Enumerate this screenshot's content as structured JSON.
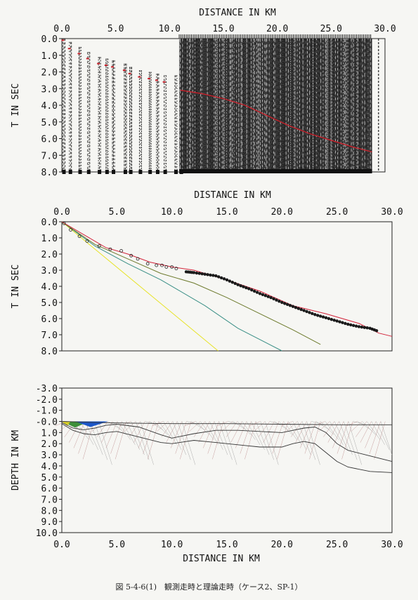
{
  "caption": "図 5-4-6(1)　観測走時と理論走時（ケース2、SP-1）",
  "chart_data": [
    {
      "id": "record-section",
      "type": "seismic-record-section",
      "xlabel": "DISTANCE IN KM",
      "ylabel": "T IN SEC",
      "xlim": [
        0,
        30
      ],
      "ylim": [
        0,
        8
      ],
      "xticks": [
        "0.0",
        "5.0",
        "10.0",
        "15.0",
        "20.0",
        "25.0",
        "30.0"
      ],
      "yticks": [
        "0.0",
        "1.0",
        "2.0",
        "3.0",
        "4.0",
        "5.0",
        "6.0",
        "7.0",
        "8.0"
      ],
      "x_axis_position": "top",
      "trace_groups_km": [
        0.1,
        0.7,
        1.6,
        2.4,
        3.4,
        4.1,
        4.7,
        5.8,
        6.3,
        7.2,
        8.1,
        8.8,
        9.5,
        10.5,
        11.0
      ],
      "dense_section_km": [
        10.9,
        28.8
      ],
      "first_break_picks": [
        [
          0.1,
          0.1
        ],
        [
          0.7,
          0.6
        ],
        [
          1.6,
          0.9
        ],
        [
          2.4,
          1.2
        ],
        [
          3.4,
          1.5
        ],
        [
          4.1,
          1.6
        ],
        [
          4.7,
          1.7
        ],
        [
          5.8,
          1.9
        ],
        [
          6.3,
          2.1
        ],
        [
          7.2,
          2.3
        ],
        [
          8.1,
          2.4
        ],
        [
          8.8,
          2.5
        ],
        [
          9.5,
          2.6
        ]
      ],
      "theoretical_curve": {
        "color": "#c8202a",
        "x": [
          11,
          13,
          15,
          17,
          19,
          21,
          23,
          25,
          27,
          28.8
        ],
        "y": [
          3.1,
          3.3,
          3.6,
          4.0,
          4.6,
          5.2,
          5.7,
          6.1,
          6.5,
          6.8
        ]
      }
    },
    {
      "id": "travel-time",
      "type": "line",
      "xlabel": "DISTANCE IN KM",
      "ylabel": "T IN SEC",
      "xlim": [
        0,
        30
      ],
      "ylim": [
        0,
        8
      ],
      "xticks": [
        "0.0",
        "5.0",
        "10.0",
        "15.0",
        "20.0",
        "25.0",
        "30.0"
      ],
      "yticks": [
        "0.0",
        "1.0",
        "2.0",
        "3.0",
        "4.0",
        "5.0",
        "6.0",
        "7.0",
        "8.0"
      ],
      "series": [
        {
          "color": "#e7e324",
          "x": [
            0,
            14.2
          ],
          "y": [
            0,
            8
          ]
        },
        {
          "color": "#3a8f86",
          "x": [
            0,
            3,
            6,
            9,
            10.5,
            13,
            16,
            20
          ],
          "y": [
            0,
            1.5,
            2.6,
            3.6,
            4.2,
            5.2,
            6.6,
            8.0
          ]
        },
        {
          "color": "#6d7a2d",
          "x": [
            0,
            3,
            6,
            9,
            12,
            15,
            18,
            21,
            23.5
          ],
          "y": [
            0,
            1.4,
            2.3,
            3.2,
            3.8,
            4.7,
            5.7,
            6.7,
            7.6
          ]
        },
        {
          "color": "#d2243a",
          "x": [
            0,
            2,
            4,
            6,
            8,
            10,
            12,
            15,
            18,
            21,
            24,
            27,
            28.8,
            30
          ],
          "y": [
            0,
            0.8,
            1.6,
            2.0,
            2.5,
            2.8,
            3.0,
            3.6,
            4.3,
            5.2,
            5.7,
            6.3,
            6.9,
            7.1
          ]
        }
      ],
      "observed_points": {
        "x": [
          0.2,
          0.8,
          1.6,
          2.3,
          3.4,
          4.4,
          5.4,
          6.3,
          6.9,
          7.8,
          8.6,
          9.1,
          9.5,
          10.0,
          10.4
        ],
        "y": [
          0.1,
          0.5,
          0.9,
          1.2,
          1.5,
          1.7,
          1.8,
          2.1,
          2.3,
          2.6,
          2.7,
          2.7,
          2.8,
          2.8,
          2.9
        ]
      },
      "observed_picks": {
        "x": [
          11.3,
          12,
          13,
          14,
          15,
          16,
          17,
          18,
          19,
          20,
          21,
          22,
          23,
          24,
          25,
          26,
          27,
          28,
          28.8
        ],
        "y": [
          3.1,
          3.15,
          3.25,
          3.35,
          3.6,
          3.9,
          4.15,
          4.45,
          4.7,
          5.0,
          5.25,
          5.5,
          5.75,
          5.95,
          6.15,
          6.35,
          6.5,
          6.6,
          6.8
        ]
      }
    },
    {
      "id": "velocity-model",
      "type": "ray-diagram",
      "xlabel": "DISTANCE IN KM",
      "ylabel": "DEPTH IN KM",
      "xlim": [
        0,
        30
      ],
      "ylim": [
        -3,
        10
      ],
      "xticks": [
        "0.0",
        "5.0",
        "10.0",
        "15.0",
        "20.0",
        "25.0",
        "30.0"
      ],
      "yticks": [
        "-3.0",
        "-2.0",
        "-1.0",
        "-0.0",
        "1.0",
        "2.0",
        "3.0",
        "4.0",
        "5.0",
        "6.0",
        "7.0",
        "8.0",
        "9.0",
        "10.0"
      ],
      "layers": [
        {
          "x": [
            0,
            3,
            6,
            10,
            15,
            20,
            25,
            30
          ],
          "y": [
            0,
            0.1,
            0.15,
            0.2,
            0.2,
            0.25,
            0.3,
            0.3
          ]
        },
        {
          "x": [
            0,
            1,
            2,
            3,
            4,
            5,
            7,
            9,
            10,
            12,
            14,
            16,
            18,
            20,
            22,
            23,
            24,
            25,
            26,
            28,
            30
          ],
          "y": [
            0.1,
            0.6,
            0.75,
            0.6,
            0.35,
            0.25,
            0.5,
            1.2,
            1.5,
            1.1,
            0.8,
            0.8,
            0.9,
            1.0,
            0.6,
            0.5,
            1.0,
            2.0,
            2.6,
            3.1,
            3.6
          ]
        },
        {
          "x": [
            0,
            1,
            2,
            3,
            4,
            5,
            7,
            9,
            10,
            12,
            14,
            16,
            18,
            20,
            21,
            22,
            23,
            24,
            25,
            26,
            28,
            30
          ],
          "y": [
            0.2,
            0.8,
            1.1,
            1.2,
            1.0,
            0.9,
            1.4,
            1.9,
            2.0,
            1.7,
            1.9,
            2.1,
            2.3,
            2.3,
            2.0,
            1.8,
            2.0,
            2.8,
            3.6,
            4.1,
            4.5,
            4.6
          ]
        }
      ],
      "layer_colors": [
        "#3d8f3a",
        "#1b56c8",
        "#d9cf2a"
      ]
    }
  ]
}
